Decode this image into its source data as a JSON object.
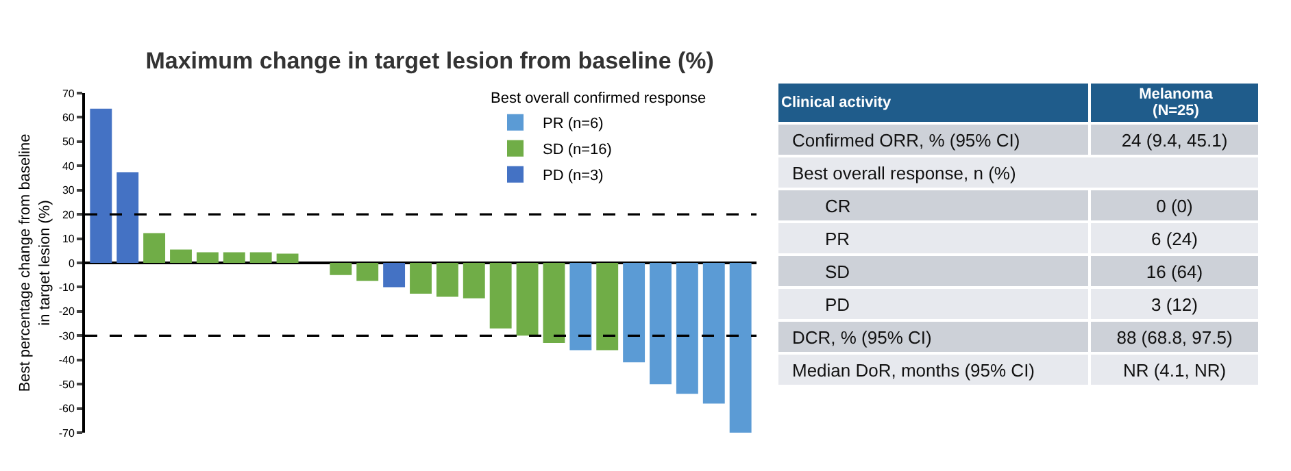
{
  "chart_data": [
    {
      "type": "bar",
      "title": "Maximum change in target lesion from baseline (%)",
      "ylabel": "Best percentage change from baseline in target lesion (%)",
      "legend_title": "Best overall confirmed response",
      "categories": [
        null,
        null,
        null,
        null,
        null,
        null,
        null,
        null,
        null,
        null,
        null,
        null,
        null,
        null,
        null,
        null,
        null,
        null,
        null,
        null,
        null,
        null,
        null,
        null,
        null
      ],
      "series": [
        {
          "name": "PR (n=6)",
          "color": "#5b9bd5",
          "values": [
            null,
            null,
            null,
            null,
            null,
            null,
            null,
            null,
            null,
            null,
            null,
            null,
            null,
            null,
            null,
            null,
            null,
            null,
            -36,
            null,
            -41,
            -50,
            -54,
            -58,
            -70
          ]
        },
        {
          "name": "SD (n=16)",
          "color": "#70ad47",
          "values": [
            null,
            null,
            12.3,
            5.5,
            4.4,
            4.4,
            4.4,
            3.8,
            0,
            -5,
            -7.4,
            null,
            -12.7,
            -14,
            -14.6,
            -27,
            -30,
            -33,
            null,
            -36,
            null,
            null,
            null,
            null,
            null
          ]
        },
        {
          "name": "PD (n=3)",
          "color": "#4472c4",
          "values": [
            63.6,
            37.4,
            null,
            null,
            null,
            null,
            null,
            null,
            null,
            null,
            null,
            -10,
            null,
            null,
            null,
            null,
            null,
            null,
            null,
            null,
            null,
            null,
            null,
            null,
            null
          ]
        }
      ],
      "ylim": [
        -70,
        70
      ],
      "yticks": [
        -70,
        -60,
        -50,
        -40,
        -30,
        -20,
        -10,
        0,
        10,
        20,
        30,
        40,
        50,
        60,
        70
      ],
      "ref_lines": [
        {
          "axis": "y",
          "value": 20,
          "line_style": "dashed",
          "color": "#000000"
        },
        {
          "axis": "y",
          "value": -30,
          "line_style": "dashed",
          "color": "#000000"
        }
      ],
      "legend": "top right",
      "grid": false
    },
    {
      "type": "other",
      "cell_labels": [
        [
          "Clinical activity",
          "Melanoma\n(N=25)"
        ],
        [
          "Confirmed ORR, % (95% CI)",
          "24 (9.4, 45.1)"
        ],
        [
          "Best overall response, n (%)",
          null
        ],
        [
          "CR",
          "0 (0)"
        ],
        [
          "PR",
          "6 (24)"
        ],
        [
          "SD",
          "16 (64)"
        ],
        [
          "PD",
          "3 (12)"
        ],
        [
          "DCR, % (95% CI)",
          "88 (68.8, 97.5)"
        ],
        [
          "Median DoR, months (95% CI)",
          "NR (4.1, NR)"
        ]
      ]
    }
  ]
}
